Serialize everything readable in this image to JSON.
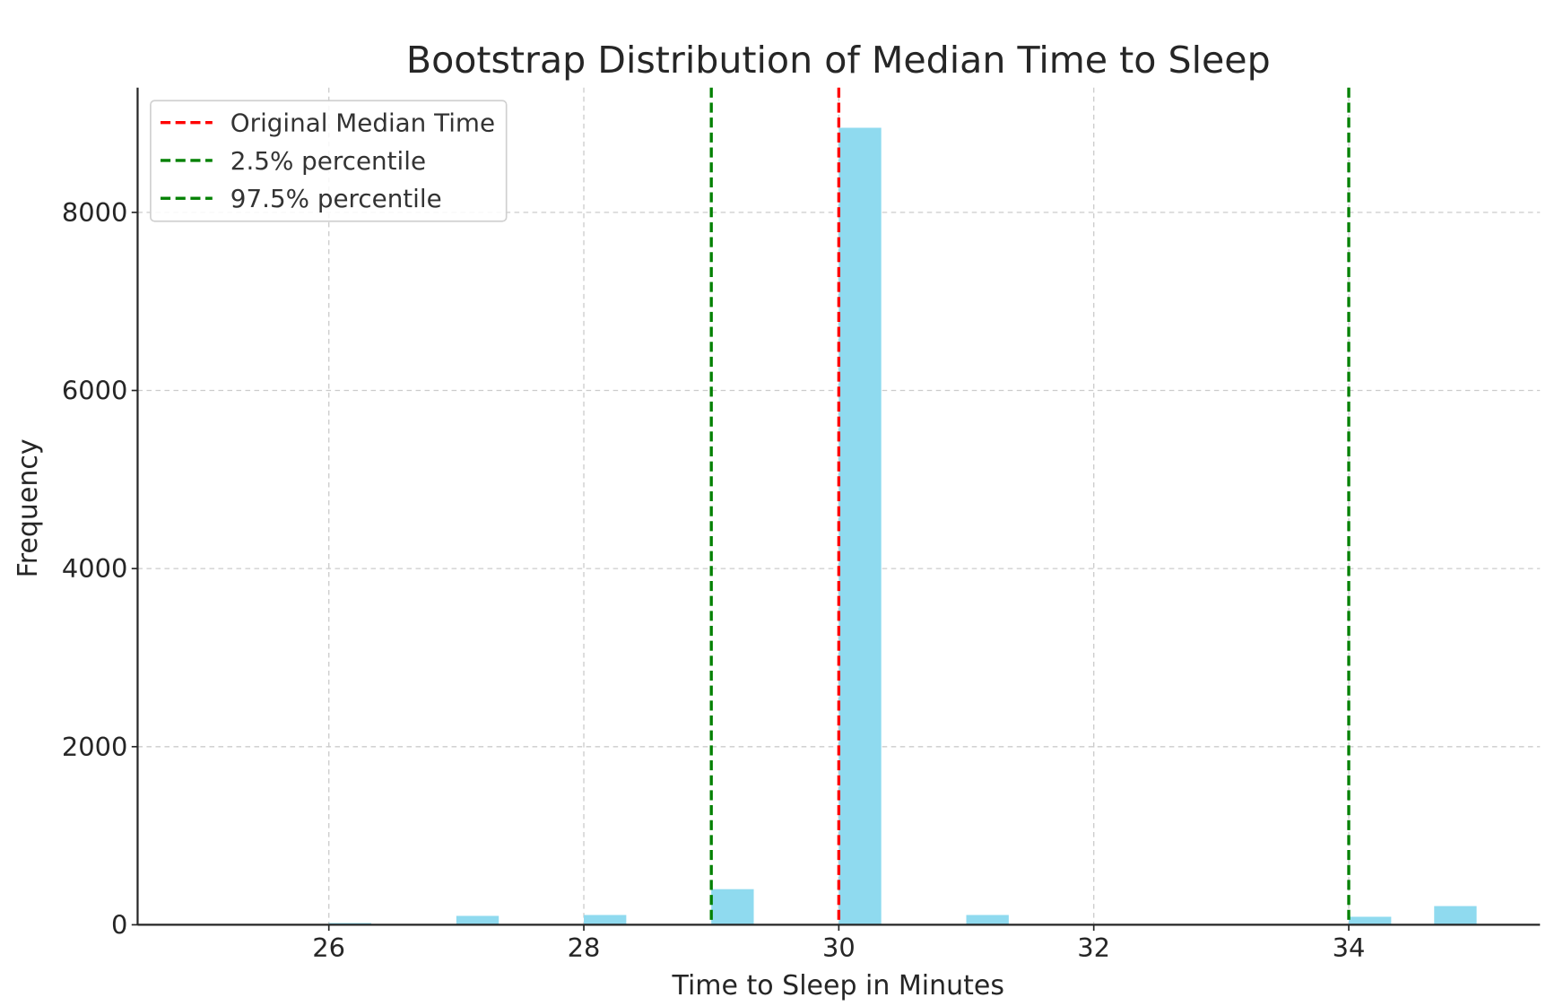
{
  "chart_data": {
    "type": "bar",
    "title": "Bootstrap Distribution of Median Time to Sleep",
    "xlabel": "Time to Sleep in Minutes",
    "ylabel": "Frequency",
    "xlim": [
      24.5,
      35.5
    ],
    "ylim": [
      0,
      9400
    ],
    "xticks": [
      26,
      28,
      30,
      32,
      34
    ],
    "yticks": [
      0,
      2000,
      4000,
      6000,
      8000
    ],
    "grid": true,
    "bin_width": 0.333,
    "bars": [
      {
        "x": 26.0,
        "value": 20
      },
      {
        "x": 27.0,
        "value": 100
      },
      {
        "x": 28.0,
        "value": 110
      },
      {
        "x": 29.0,
        "value": 400
      },
      {
        "x": 30.0,
        "value": 8950
      },
      {
        "x": 31.0,
        "value": 110
      },
      {
        "x": 34.0,
        "value": 90
      },
      {
        "x": 34.67,
        "value": 210
      }
    ],
    "bar_color": "#8fdaef",
    "vlines": [
      {
        "label": "Original Median Time",
        "x": 30,
        "color": "#ff0000"
      },
      {
        "label": "2.5% percentile",
        "x": 29,
        "color": "#008000"
      },
      {
        "label": "97.5% percentile",
        "x": 34,
        "color": "#008000"
      }
    ],
    "legend_position": "top-left"
  }
}
